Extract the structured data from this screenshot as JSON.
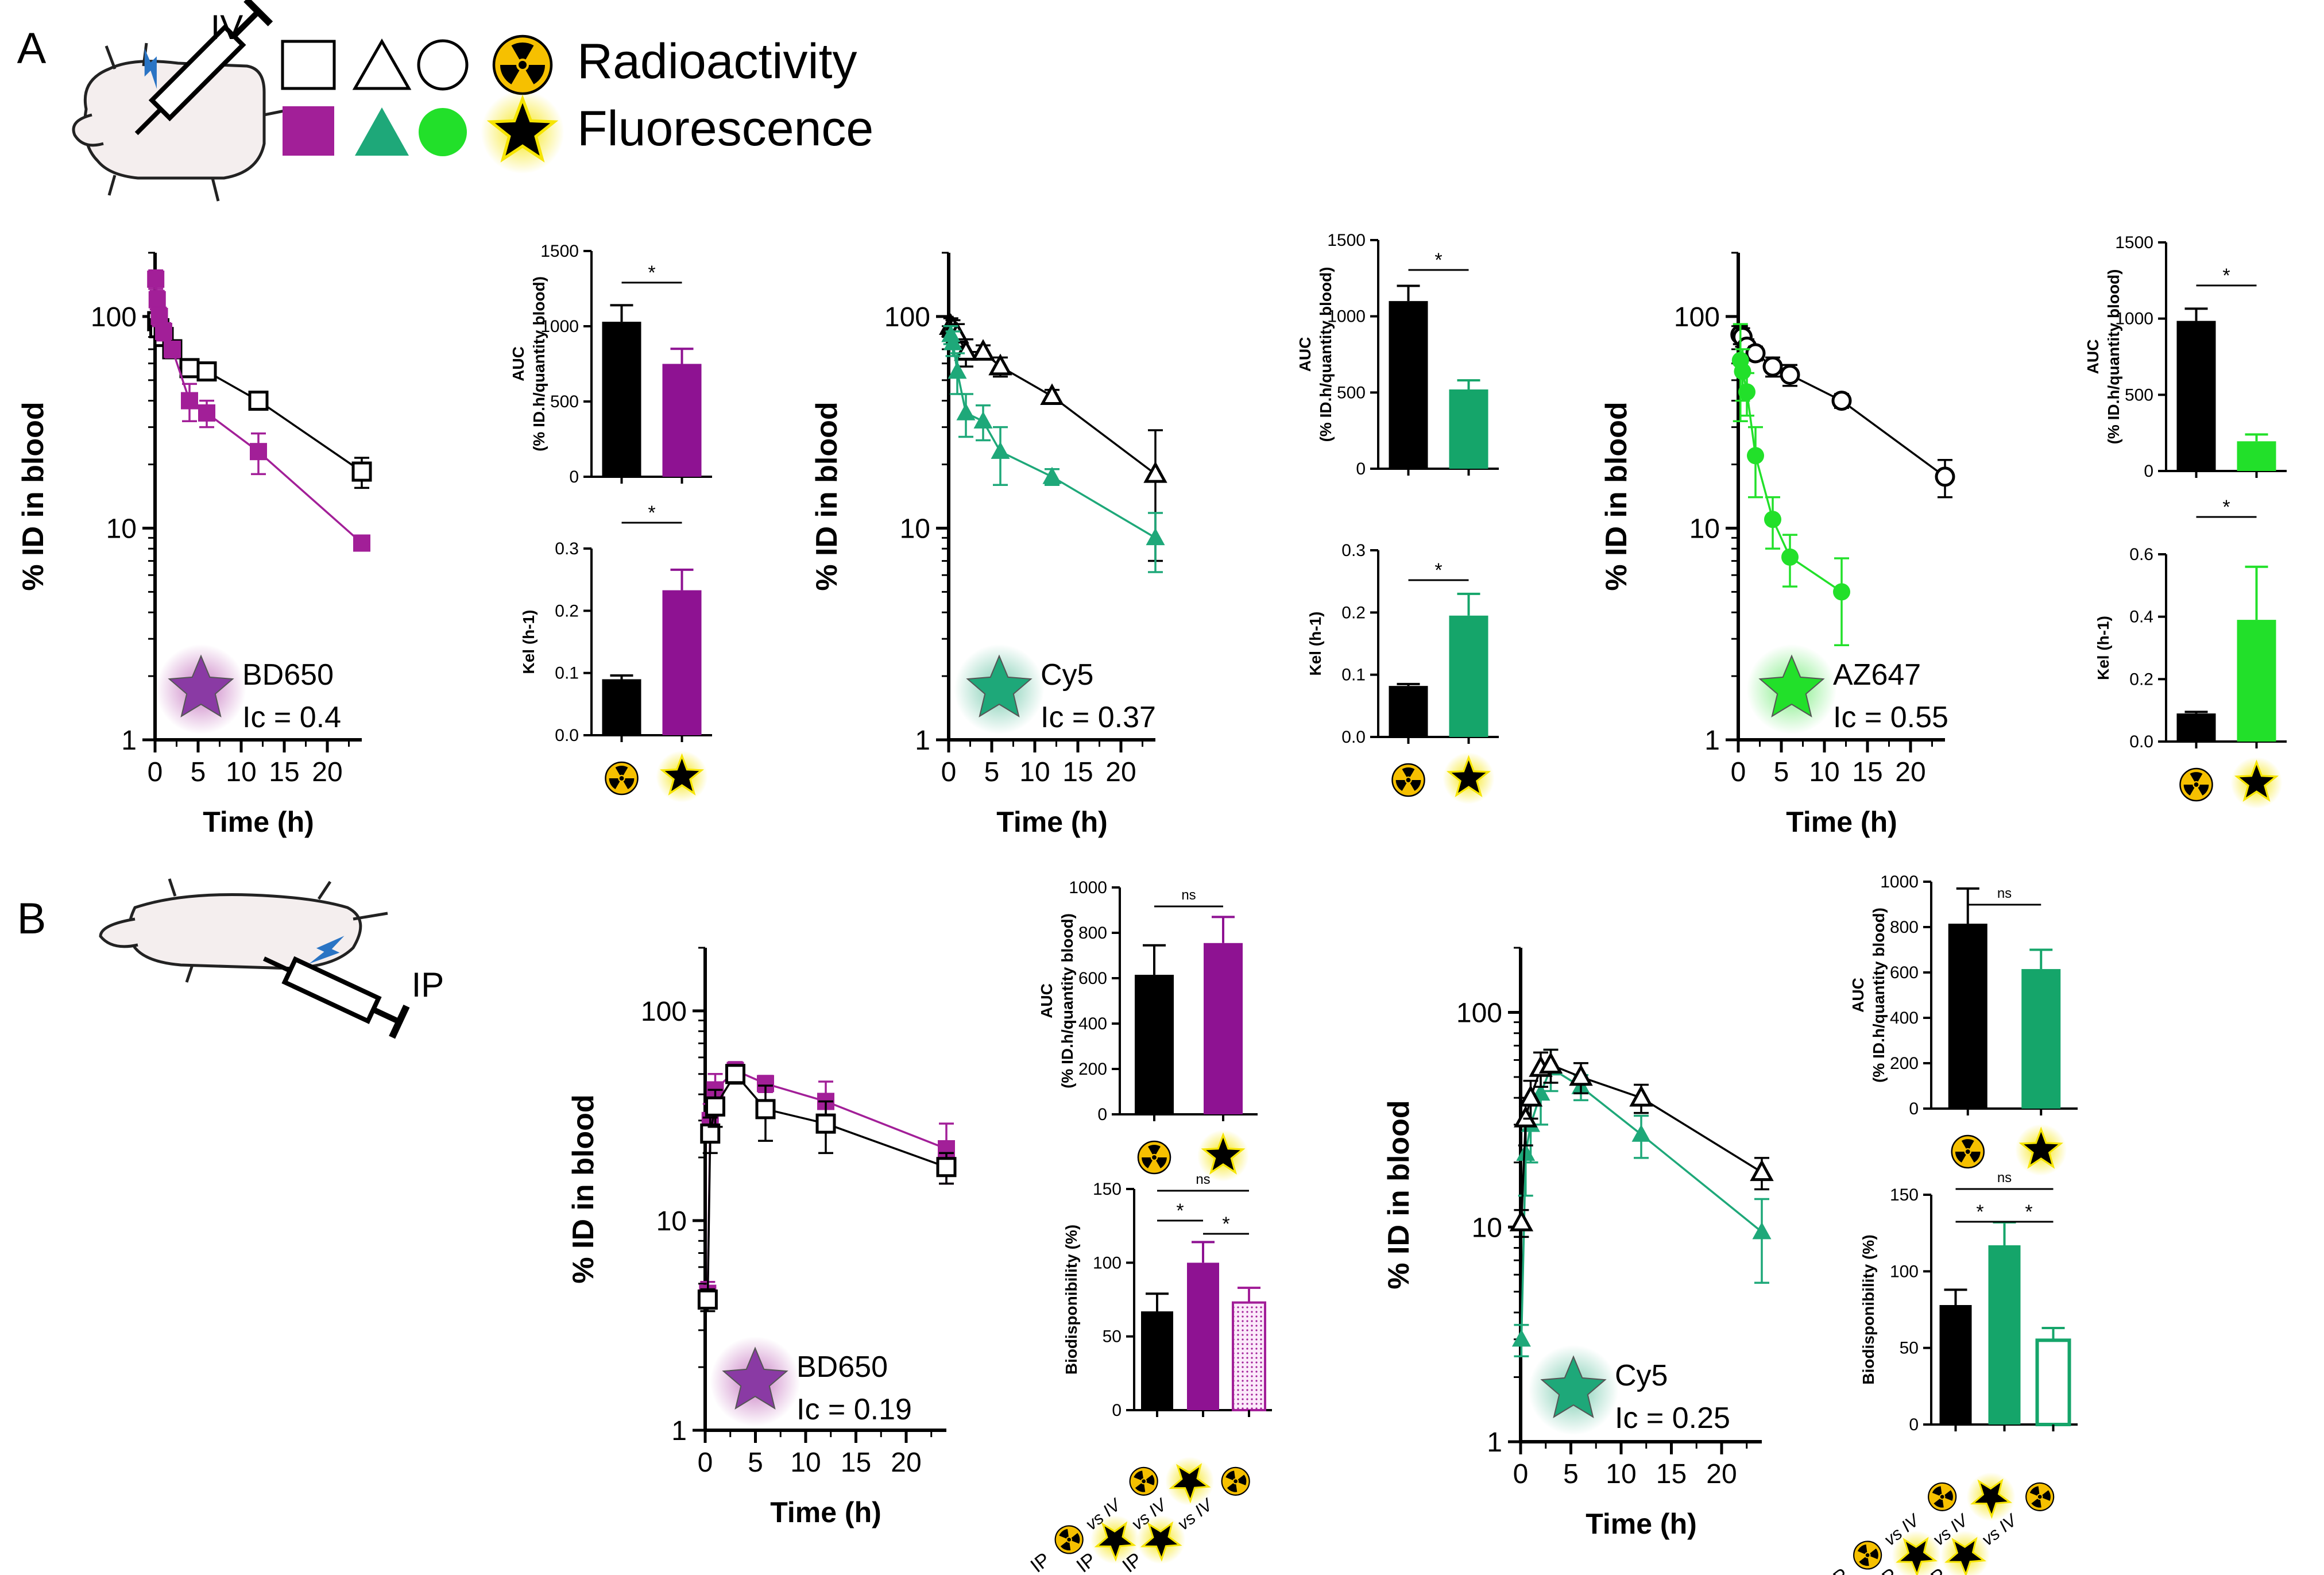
{
  "panel_labels": {
    "a": "A",
    "b": "B"
  },
  "legend": {
    "iv_label": "IV",
    "ip_label": "IP",
    "radioactivity": "Radioactivity",
    "fluorescence": "Fluorescence"
  },
  "colors": {
    "bd650": "#a21f98",
    "bd650_bar": "#8e1292",
    "cy5": "#1ea879",
    "cy5_bar": "#15a56a",
    "az647": "#22e02a",
    "radio_yellow": "#f6c000",
    "star_glow": "#f6e400",
    "black": "#000000",
    "syringe_blue": "#2a74c4",
    "mouse_fill": "#f4eeee"
  },
  "chart_data": [
    {
      "id": "A1",
      "type": "line",
      "yscale": "log",
      "title": "BD650",
      "annotation": "Ic = 0.4",
      "xlabel": "Time (h)",
      "ylabel": "% ID in blood",
      "xlim": [
        0,
        24
      ],
      "ylim": [
        1,
        200
      ],
      "xticks": [
        "0",
        "5",
        "10",
        "15",
        "20"
      ],
      "yticks": [
        "1",
        "10",
        "100"
      ],
      "series": [
        {
          "name": "Radioactivity",
          "marker": "square-open",
          "color": "#000000",
          "x": [
            0.25,
            0.5,
            1,
            2,
            4,
            6,
            12,
            24
          ],
          "y": [
            95,
            88,
            80,
            70,
            57,
            55,
            40,
            18.5
          ],
          "err": [
            8,
            8,
            6,
            6,
            5,
            5,
            3,
            3
          ]
        },
        {
          "name": "Fluorescence",
          "marker": "square",
          "color": "#a21f98",
          "x": [
            0.08,
            0.25,
            0.5,
            1,
            2,
            4,
            6,
            12,
            24
          ],
          "y": [
            150,
            120,
            100,
            85,
            70,
            40,
            35,
            23,
            8.5
          ],
          "err": [
            15,
            12,
            10,
            8,
            6,
            8,
            5,
            5,
            0.5
          ]
        }
      ]
    },
    {
      "id": "A2",
      "type": "line",
      "yscale": "log",
      "title": "Cy5",
      "annotation": "Ic = 0.37",
      "xlabel": "Time (h)",
      "ylabel": "% ID in blood",
      "xlim": [
        0,
        24
      ],
      "ylim": [
        1,
        200
      ],
      "xticks": [
        "0",
        "5",
        "10",
        "15",
        "20"
      ],
      "yticks": [
        "1",
        "10",
        "100"
      ],
      "series": [
        {
          "name": "Radioactivity",
          "marker": "triangle-open",
          "color": "#000000",
          "x": [
            0.25,
            0.5,
            1,
            2,
            4,
            6,
            12,
            24
          ],
          "y": [
            90,
            88,
            82,
            68,
            68,
            58,
            42,
            18
          ],
          "err": [
            8,
            8,
            10,
            10,
            5,
            6,
            3,
            11
          ]
        },
        {
          "name": "Fluorescence",
          "marker": "triangle",
          "color": "#1ea879",
          "x": [
            0.25,
            0.5,
            1,
            2,
            4,
            6,
            12,
            24
          ],
          "y": [
            82,
            75,
            55,
            35,
            32,
            23,
            17.5,
            9
          ],
          "err": [
            8,
            10,
            12,
            8,
            6,
            7,
            1.5,
            2.8
          ]
        }
      ]
    },
    {
      "id": "A3",
      "type": "line",
      "yscale": "log",
      "title": "AZ647",
      "annotation": "Ic = 0.55",
      "xlabel": "Time (h)",
      "ylabel": "% ID in blood",
      "xlim": [
        0,
        24
      ],
      "ylim": [
        1,
        200
      ],
      "xticks": [
        "0",
        "5",
        "10",
        "15",
        "20"
      ],
      "yticks": [
        "1",
        "10",
        "100"
      ],
      "series": [
        {
          "name": "Radioactivity",
          "marker": "circle-open",
          "color": "#000000",
          "x": [
            0.25,
            0.5,
            1,
            2,
            4,
            6,
            12,
            24
          ],
          "y": [
            82,
            80,
            72,
            67,
            58,
            53,
            40,
            17.5
          ],
          "err": [
            8,
            8,
            6,
            5,
            6,
            6,
            3,
            3.5
          ]
        },
        {
          "name": "Fluorescence",
          "marker": "circle",
          "color": "#22e02a",
          "x": [
            0.25,
            0.5,
            1,
            2,
            4,
            6,
            12
          ],
          "y": [
            62,
            55,
            44,
            22,
            11,
            7.3,
            5
          ],
          "err": [
            30,
            15,
            10,
            8,
            3,
            2,
            2.2
          ]
        }
      ]
    },
    {
      "id": "A1-auc",
      "type": "bar",
      "ylabel": "AUC",
      "ylabel2": "(% ID.h/quantity blood)",
      "ylim": [
        0,
        1500
      ],
      "yticks": [
        "0",
        "500",
        "1000",
        "1500"
      ],
      "categories": [
        "Radioactivity",
        "Fluorescence"
      ],
      "values": [
        1030,
        750
      ],
      "errors": [
        110,
        100
      ],
      "colors": [
        "#000000",
        "#8e1292"
      ],
      "sig": [
        "*"
      ]
    },
    {
      "id": "A1-kel",
      "type": "bar",
      "ylabel": "Kel (h-1)",
      "ylim": [
        0,
        0.3
      ],
      "yticks": [
        "0.0",
        "0.1",
        "0.2",
        "0.3"
      ],
      "categories": [
        "Radioactivity",
        "Fluorescence"
      ],
      "values": [
        0.09,
        0.233
      ],
      "errors": [
        0.006,
        0.033
      ],
      "colors": [
        "#000000",
        "#8e1292"
      ],
      "sig": [
        "*"
      ]
    },
    {
      "id": "A2-auc",
      "type": "bar",
      "ylabel": "AUC",
      "ylabel2": "(% ID.h/quantity blood)",
      "ylim": [
        0,
        1500
      ],
      "yticks": [
        "0",
        "500",
        "1000",
        "1500"
      ],
      "categories": [
        "Radioactivity",
        "Fluorescence"
      ],
      "values": [
        1100,
        520
      ],
      "errors": [
        100,
        60
      ],
      "colors": [
        "#000000",
        "#15a56a"
      ],
      "sig": [
        "*"
      ]
    },
    {
      "id": "A2-kel",
      "type": "bar",
      "ylabel": "Kel (h-1)",
      "ylim": [
        0,
        0.3
      ],
      "yticks": [
        "0.0",
        "0.1",
        "0.2",
        "0.3"
      ],
      "categories": [
        "Radioactivity",
        "Fluorescence"
      ],
      "values": [
        0.082,
        0.195
      ],
      "errors": [
        0.003,
        0.035
      ],
      "colors": [
        "#000000",
        "#15a56a"
      ],
      "sig": [
        "*"
      ]
    },
    {
      "id": "A3-auc",
      "type": "bar",
      "ylabel": "AUC",
      "ylabel2": "(% ID.h/quantity blood)",
      "ylim": [
        0,
        1500
      ],
      "yticks": [
        "0",
        "500",
        "1000",
        "1500"
      ],
      "categories": [
        "Radioactivity",
        "Fluorescence"
      ],
      "values": [
        985,
        195
      ],
      "errors": [
        80,
        45
      ],
      "colors": [
        "#000000",
        "#22e02a"
      ],
      "sig": [
        "*"
      ]
    },
    {
      "id": "A3-kel",
      "type": "bar",
      "ylabel": "Kel (h-1)",
      "ylim": [
        0,
        0.6
      ],
      "yticks": [
        "0.0",
        "0.2",
        "0.4",
        "0.6"
      ],
      "categories": [
        "Radioactivity",
        "Fluorescence"
      ],
      "values": [
        0.09,
        0.39
      ],
      "errors": [
        0.005,
        0.17
      ],
      "colors": [
        "#000000",
        "#22e02a"
      ],
      "sig": [
        "*"
      ]
    },
    {
      "id": "B1",
      "type": "line",
      "yscale": "log",
      "title": "BD650",
      "annotation": "Ic = 0.19",
      "xlabel": "Time (h)",
      "ylabel": "% ID in blood",
      "xlim": [
        0,
        24
      ],
      "ylim": [
        1,
        200
      ],
      "xticks": [
        "0",
        "5",
        "10",
        "15",
        "20"
      ],
      "yticks": [
        "1",
        "10",
        "100"
      ],
      "series": [
        {
          "name": "Fluorescence",
          "marker": "square",
          "color": "#a21f98",
          "x": [
            0.25,
            0.5,
            1,
            3,
            6,
            12,
            24
          ],
          "y": [
            4.5,
            30,
            42,
            52,
            45,
            37,
            22
          ],
          "err": [
            0.6,
            6,
            8,
            5,
            4,
            9,
            7
          ]
        },
        {
          "name": "Radioactivity",
          "marker": "square-open",
          "color": "#000000",
          "x": [
            0.25,
            0.5,
            1,
            3,
            6,
            12,
            24
          ],
          "y": [
            4.2,
            26,
            35,
            50,
            34,
            29,
            18
          ],
          "err": [
            0.5,
            5,
            7,
            5,
            10,
            8,
            3
          ]
        }
      ]
    },
    {
      "id": "B2",
      "type": "line",
      "yscale": "log",
      "title": "Cy5",
      "annotation": "Ic = 0.25",
      "xlabel": "Time (h)",
      "ylabel": "% ID in blood",
      "xlim": [
        0,
        24
      ],
      "ylim": [
        1,
        200
      ],
      "xticks": [
        "0",
        "5",
        "10",
        "15",
        "20"
      ],
      "yticks": [
        "1",
        "10",
        "100"
      ],
      "series": [
        {
          "name": "Fluorescence",
          "marker": "triangle",
          "color": "#1ea879",
          "x": [
            0.08,
            0.5,
            1,
            2,
            3,
            6,
            12,
            24
          ],
          "y": [
            3,
            22,
            30,
            42,
            55,
            45,
            27,
            9.5
          ],
          "err": [
            0.5,
            8,
            10,
            12,
            12,
            6,
            6,
            4
          ]
        },
        {
          "name": "Radioactivity",
          "marker": "triangle-open",
          "color": "#000000",
          "x": [
            0.08,
            0.5,
            1,
            2,
            3,
            6,
            12,
            24
          ],
          "y": [
            10.5,
            32,
            40,
            55,
            57,
            50,
            40,
            18
          ],
          "err": [
            1.5,
            8,
            8,
            10,
            10,
            8,
            6,
            3
          ]
        }
      ]
    },
    {
      "id": "B1-auc",
      "type": "bar",
      "ylabel": "AUC",
      "ylabel2": "(% ID.h/quantity blood)",
      "ylim": [
        0,
        1000
      ],
      "yticks": [
        "0",
        "200",
        "400",
        "600",
        "800",
        "1000"
      ],
      "categories": [
        "Radioactivity",
        "Fluorescence"
      ],
      "values": [
        615,
        755
      ],
      "errors": [
        130,
        115
      ],
      "colors": [
        "#000000",
        "#8e1292"
      ],
      "sig": [
        "ns"
      ]
    },
    {
      "id": "B1-bio",
      "type": "bar",
      "ylabel": "Biodisponibility (%)",
      "ylim": [
        0,
        150
      ],
      "yticks": [
        "0",
        "50",
        "100",
        "150"
      ],
      "categories": [
        "IP radio vs IV radio",
        "IP fluo vs IV fluo",
        "IP fluo vs IV radio"
      ],
      "values": [
        67,
        100,
        73
      ],
      "errors": [
        12,
        14,
        10
      ],
      "colors": [
        "#000000",
        "#8e1292",
        "#e9b7e6"
      ],
      "sig": [
        "*",
        "*",
        "ns"
      ]
    },
    {
      "id": "B2-auc",
      "type": "bar",
      "ylabel": "AUC",
      "ylabel2": "(% ID.h/quantity blood)",
      "ylim": [
        0,
        1000
      ],
      "yticks": [
        "0",
        "200",
        "400",
        "600",
        "800",
        "1000"
      ],
      "categories": [
        "Radioactivity",
        "Fluorescence"
      ],
      "values": [
        815,
        615
      ],
      "errors": [
        155,
        85
      ],
      "colors": [
        "#000000",
        "#15a56a"
      ],
      "sig": [
        "ns"
      ]
    },
    {
      "id": "B2-bio",
      "type": "bar",
      "ylabel": "Biodisponibility (%)",
      "ylim": [
        0,
        150
      ],
      "yticks": [
        "0",
        "50",
        "100",
        "150"
      ],
      "categories": [
        "IP radio vs IV radio",
        "IP fluo vs IV fluo",
        "IP fluo vs IV radio"
      ],
      "values": [
        78,
        117,
        55
      ],
      "errors": [
        10,
        15,
        8
      ],
      "colors": [
        "#000000",
        "#15a56a",
        "#ffffff"
      ],
      "sig": [
        "*",
        "*",
        "ns"
      ]
    }
  ],
  "bio_xlabels": {
    "ip": "IP",
    "vs_iv": "vs IV"
  }
}
